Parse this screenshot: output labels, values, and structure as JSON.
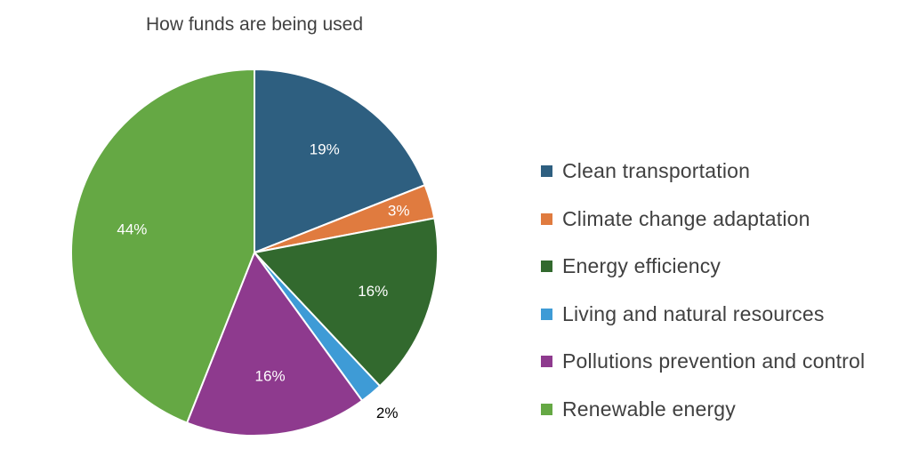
{
  "chart_data": {
    "type": "pie",
    "title": "How funds are being used",
    "start_angle_deg": 0,
    "direction": "clockwise",
    "legend_position": "right",
    "slices": [
      {
        "label": "Clean transportation",
        "value": 19,
        "display": "19%",
        "color": "#2E5F80"
      },
      {
        "label": "Climate change adaptation",
        "value": 3,
        "display": "3%",
        "color": "#E07B3F"
      },
      {
        "label": "Energy efficiency",
        "value": 16,
        "display": "16%",
        "color": "#32692E"
      },
      {
        "label": "Living and natural resources",
        "value": 2,
        "display": "2%",
        "color": "#3E9BD6"
      },
      {
        "label": "Pollutions prevention and control",
        "value": 16,
        "display": "16%",
        "color": "#8E3A8E"
      },
      {
        "label": "Renewable energy",
        "value": 44,
        "display": "44%",
        "color": "#65A844"
      }
    ]
  }
}
